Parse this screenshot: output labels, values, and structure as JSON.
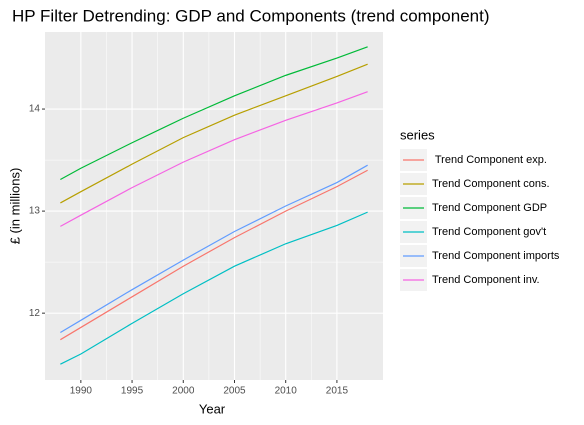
{
  "chart_data": {
    "type": "line",
    "title": "HP Filter Detrending: GDP and Components (trend component)",
    "x_label": "Year",
    "y_label": "£ (in millions)",
    "legend_title": "series",
    "x": [
      1988,
      1990,
      1995,
      2000,
      2005,
      2010,
      2015,
      2018
    ],
    "series": [
      {
        "name": " Trend Component exp.",
        "color": "#F8766D",
        "values": [
          11.74,
          11.86,
          12.16,
          12.46,
          12.74,
          13.0,
          13.24,
          13.4
        ]
      },
      {
        "name": "Trend Component cons.",
        "color": "#B79F00",
        "values": [
          13.08,
          13.19,
          13.46,
          13.72,
          13.94,
          14.13,
          14.32,
          14.44
        ]
      },
      {
        "name": "Trend Component GDP",
        "color": "#00BA38",
        "values": [
          13.31,
          13.42,
          13.67,
          13.91,
          14.13,
          14.33,
          14.5,
          14.61
        ]
      },
      {
        "name": "Trend Component gov't",
        "color": "#00BFC4",
        "values": [
          11.5,
          11.6,
          11.9,
          12.19,
          12.46,
          12.68,
          12.86,
          12.99
        ]
      },
      {
        "name": "Trend Component imports",
        "color": "#619CFF",
        "values": [
          11.81,
          11.93,
          12.23,
          12.52,
          12.8,
          13.05,
          13.28,
          13.45
        ]
      },
      {
        "name": "Trend Component inv.",
        "color": "#F564E3",
        "values": [
          12.85,
          12.96,
          13.23,
          13.48,
          13.7,
          13.89,
          14.06,
          14.17
        ]
      }
    ],
    "xlim": [
      1986.5,
      2019.5
    ],
    "xticks": [
      1990,
      1995,
      2000,
      2005,
      2010,
      2015
    ],
    "ylim": [
      11.345,
      14.755
    ],
    "yticks": [
      12,
      13,
      14
    ],
    "grid": true,
    "legend": "right"
  }
}
